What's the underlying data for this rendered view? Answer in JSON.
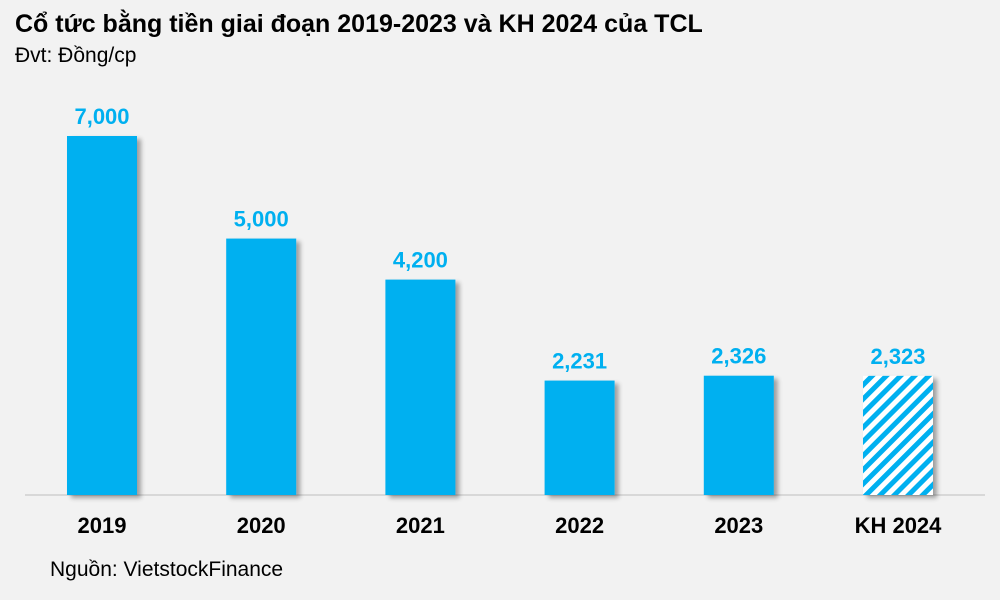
{
  "title": "Cổ tức bằng tiền giai đoạn 2019-2023 và KH 2024 của TCL",
  "subtitle": "Đvt: Đồng/cp",
  "source": "Nguồn: VietstockFinance",
  "colors": {
    "bar": "#00b0f0",
    "hatch_bg": "#ffffff",
    "label": "#00b0f0"
  },
  "chart_data": {
    "type": "bar",
    "title": "Cổ tức bằng tiền giai đoạn 2019-2023 và KH 2024 của TCL",
    "subtitle": "Đvt: Đồng/cp",
    "categories": [
      "2019",
      "2020",
      "2021",
      "2022",
      "2023",
      "KH 2024"
    ],
    "values": [
      7000,
      5000,
      4200,
      2231,
      2326,
      2323
    ],
    "value_labels": [
      "7,000",
      "5,000",
      "4,200",
      "2,231",
      "2,326",
      "2,323"
    ],
    "hatched": [
      false,
      false,
      false,
      false,
      false,
      true
    ],
    "xlabel": "",
    "ylabel": "",
    "ylim": [
      0,
      7000
    ],
    "grid": false,
    "legend": "none"
  }
}
